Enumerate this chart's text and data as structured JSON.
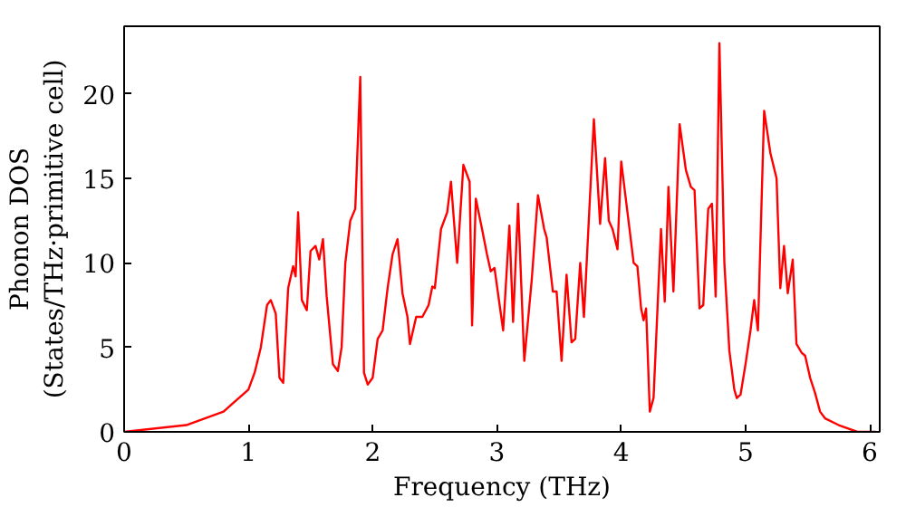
{
  "chart_data": {
    "type": "line",
    "xlabel": "Frequency (THz)",
    "ylabel": "Phonon DOS\n(States/THz·primitive cell)",
    "xlim": [
      0,
      6.08
    ],
    "ylim": [
      0,
      24
    ],
    "xticks": [
      0,
      1,
      2,
      3,
      4,
      5,
      6
    ],
    "yticks": [
      0,
      5,
      10,
      15,
      20
    ],
    "grid": false,
    "line_style": "solid",
    "series": [
      {
        "color": "#ff0000",
        "x": [
          0,
          0.5,
          0.8,
          1.0,
          1.05,
          1.1,
          1.15,
          1.18,
          1.22,
          1.25,
          1.28,
          1.32,
          1.36,
          1.38,
          1.4,
          1.43,
          1.47,
          1.5,
          1.54,
          1.57,
          1.6,
          1.63,
          1.68,
          1.72,
          1.75,
          1.78,
          1.82,
          1.86,
          1.9,
          1.93,
          1.96,
          2.0,
          2.04,
          2.08,
          2.12,
          2.16,
          2.2,
          2.24,
          2.28,
          2.3,
          2.35,
          2.4,
          2.45,
          2.48,
          2.5,
          2.55,
          2.6,
          2.63,
          2.68,
          2.73,
          2.78,
          2.8,
          2.83,
          2.88,
          2.92,
          2.95,
          2.98,
          3.05,
          3.1,
          3.13,
          3.17,
          3.22,
          3.28,
          3.33,
          3.38,
          3.4,
          3.45,
          3.48,
          3.52,
          3.56,
          3.6,
          3.63,
          3.67,
          3.7,
          3.78,
          3.83,
          3.87,
          3.9,
          3.93,
          3.97,
          4.0,
          4.05,
          4.1,
          4.13,
          4.16,
          4.18,
          4.2,
          4.23,
          4.26,
          4.32,
          4.35,
          4.38,
          4.42,
          4.47,
          4.52,
          4.56,
          4.59,
          4.63,
          4.66,
          4.7,
          4.73,
          4.76,
          4.79,
          4.83,
          4.87,
          4.91,
          4.93,
          4.96,
          5.0,
          5.04,
          5.07,
          5.1,
          5.15,
          5.2,
          5.25,
          5.28,
          5.31,
          5.34,
          5.38,
          5.41,
          5.45,
          5.48,
          5.52,
          5.56,
          5.6,
          5.64,
          5.75,
          5.9,
          6.05
        ],
        "values": [
          0,
          0.4,
          1.2,
          2.5,
          3.5,
          5,
          7.5,
          7.8,
          7,
          3.2,
          2.9,
          8.5,
          9.8,
          9.2,
          13,
          7.8,
          7.2,
          10.7,
          11,
          10.2,
          11.4,
          8,
          4,
          3.6,
          5,
          10,
          12.5,
          13.2,
          21,
          3.5,
          2.8,
          3.2,
          5.5,
          6,
          8.5,
          10.5,
          11.4,
          8.2,
          6.8,
          5.2,
          6.8,
          6.8,
          7.5,
          8.6,
          8.5,
          12,
          13,
          14.8,
          10,
          15.8,
          14.8,
          6.3,
          13.8,
          12,
          10.5,
          9.5,
          9.7,
          6,
          12.2,
          6.5,
          13.5,
          4.2,
          9,
          14,
          12,
          11.5,
          8.3,
          8.3,
          4.2,
          9.3,
          5.3,
          5.5,
          10,
          6.8,
          18.5,
          12.3,
          16.2,
          12.5,
          12,
          10.8,
          16,
          13,
          10,
          9.8,
          7.3,
          6.6,
          7.3,
          1.2,
          2,
          12,
          7.7,
          14.5,
          8.3,
          18.2,
          15.5,
          14.5,
          14.3,
          7.3,
          7.5,
          13.2,
          13.5,
          8,
          23,
          10,
          4.8,
          2.5,
          2,
          2.2,
          4,
          6,
          7.8,
          6,
          19,
          16.5,
          15,
          8.5,
          11,
          8.2,
          10.2,
          5.2,
          4.7,
          4.5,
          3.2,
          2.3,
          1.2,
          0.8,
          0.4,
          0,
          0
        ]
      }
    ]
  }
}
